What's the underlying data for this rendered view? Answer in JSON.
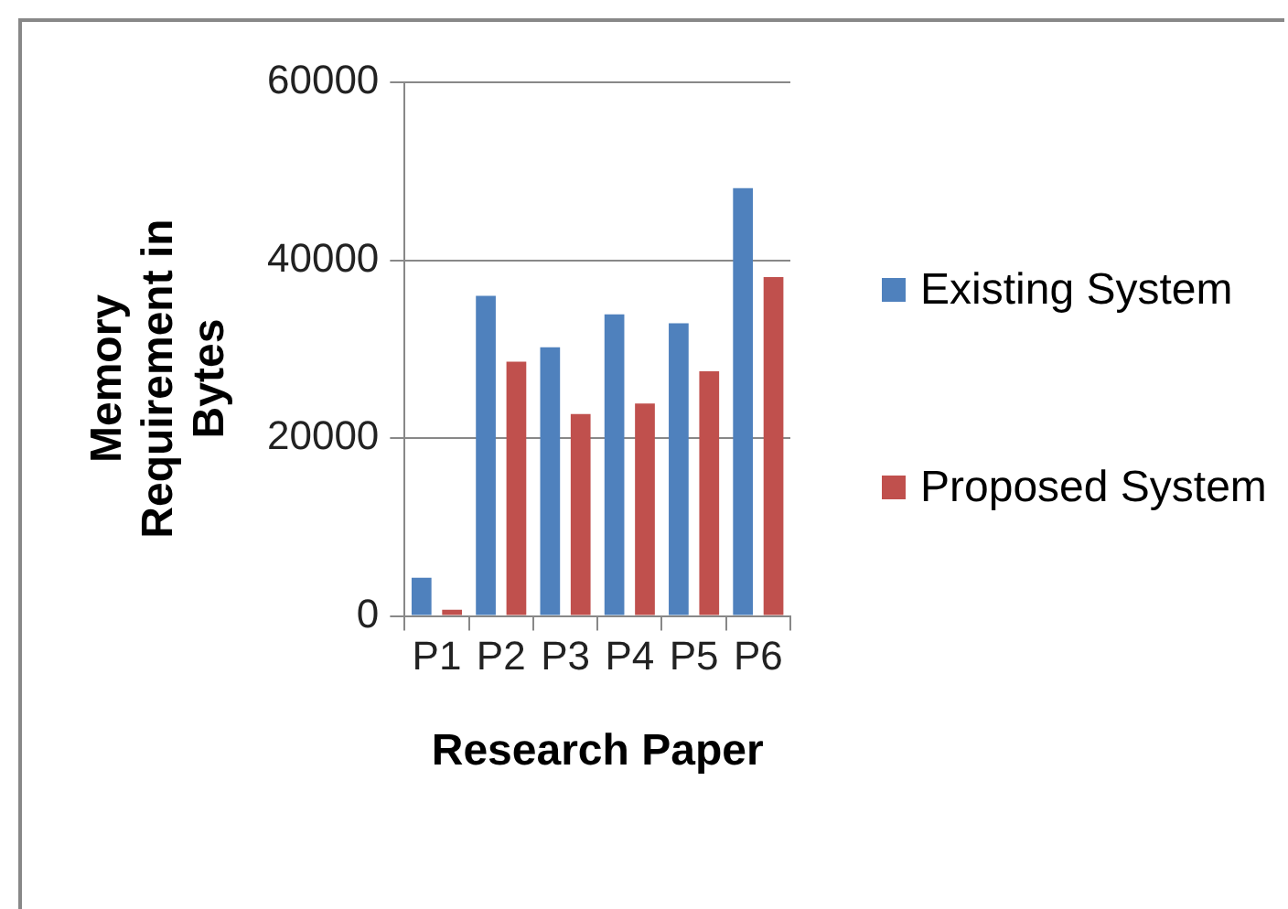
{
  "chart_data": {
    "type": "bar",
    "xlabel": "Research Paper",
    "ylabel": "Memory Requirement in Bytes",
    "categories": [
      "P1",
      "P2",
      "P3",
      "P4",
      "P5",
      "P6"
    ],
    "series": [
      {
        "name": "Existing System",
        "color": "#4f81bd",
        "values": [
          4300,
          36000,
          30200,
          33900,
          32900,
          48100
        ]
      },
      {
        "name": "Proposed System",
        "color": "#c0504d",
        "values": [
          700,
          28600,
          22700,
          23900,
          27500,
          38100
        ]
      }
    ],
    "ylim": [
      0,
      60000
    ],
    "yticks": [
      0,
      20000,
      40000,
      60000
    ],
    "grid": "y",
    "legend": "right"
  }
}
